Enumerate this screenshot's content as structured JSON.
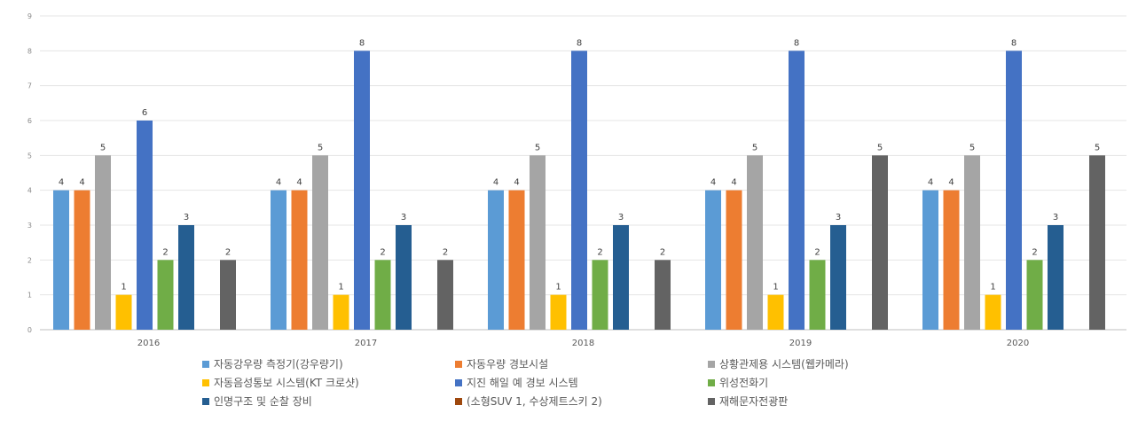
{
  "chart_data": {
    "type": "bar",
    "title": "",
    "xlabel": "",
    "ylabel": "",
    "ylim": [
      0,
      9
    ],
    "yticks": [
      0,
      1,
      2,
      3,
      4,
      5,
      6,
      7,
      8,
      9
    ],
    "grid": true,
    "legend_position": "bottom",
    "categories": [
      "2016",
      "2017",
      "2018",
      "2019",
      "2020"
    ],
    "series": [
      {
        "name": "자동강우량 측정기(강우량기)",
        "color": "#5b9bd5",
        "values": [
          4,
          4,
          4,
          4,
          4
        ]
      },
      {
        "name": "자동우량 경보시설",
        "color": "#ed7d31",
        "values": [
          4,
          4,
          4,
          4,
          4
        ]
      },
      {
        "name": "상황관제용 시스템(웹카메라)",
        "color": "#a5a5a5",
        "values": [
          5,
          5,
          5,
          5,
          5
        ]
      },
      {
        "name": "자동음성통보 시스템(KT 크로샷)",
        "color": "#ffc000",
        "values": [
          1,
          1,
          1,
          1,
          1
        ]
      },
      {
        "name": "지진 해일 예 경보 시스템",
        "color": "#4472c4",
        "values": [
          6,
          8,
          8,
          8,
          8
        ]
      },
      {
        "name": "위성전화기",
        "color": "#70ad47",
        "values": [
          2,
          2,
          2,
          2,
          2
        ]
      },
      {
        "name": "인명구조 및 순찰 장비",
        "color": "#255e91",
        "values": [
          3,
          3,
          3,
          3,
          3
        ]
      },
      {
        "name": "(소형SUV 1, 수상제트스키 2)",
        "color": "#9e480e",
        "values": [
          null,
          null,
          null,
          null,
          null
        ]
      },
      {
        "name": "재해문자전광판",
        "color": "#636363",
        "values": [
          2,
          2,
          2,
          5,
          5
        ]
      }
    ]
  }
}
